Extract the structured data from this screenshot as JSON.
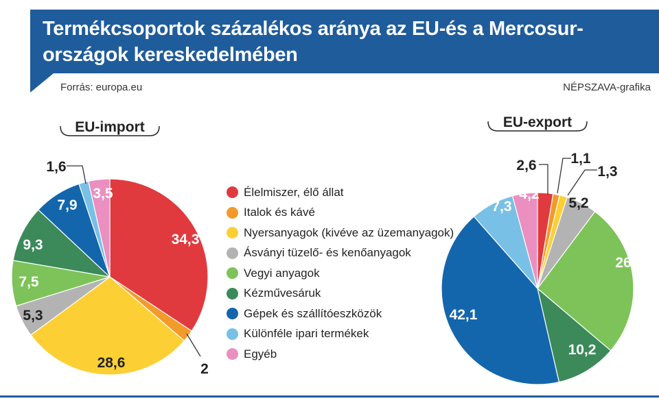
{
  "header": {
    "title_line1": "Termékcsoportok százalékos aránya az EU-és a Mercosur-",
    "title_line2": "országok kereskedelmében",
    "source": "Forrás: europa.eu",
    "credit": "NÉPSZAVA-grafika"
  },
  "colors": {
    "header_bg": "#1f5c9c",
    "categories": [
      "#e03a3e",
      "#f39a2a",
      "#fcd034",
      "#b3b3b3",
      "#7dc35a",
      "#3c8a5a",
      "#1466ac",
      "#79c0e6",
      "#ea8fc0"
    ]
  },
  "legend": [
    "Élelmiszer, élő állat",
    "Italok és kávé",
    "Nyersanyagok (kivéve az üzemanyagok)",
    "Ásványi tüzelő- és kenőanyagok",
    "Vegyi anyagok",
    "Kézművesáruk",
    "Gépek és szállítóeszközök",
    "Különféle ipari termékek",
    "Egyéb"
  ],
  "chart_data": [
    {
      "type": "pie",
      "title": "EU-import",
      "categories": [
        "Élelmiszer, élő állat",
        "Italok és kávé",
        "Nyersanyagok (kivéve az üzemanyagok)",
        "Ásványi tüzelő- és kenőanyagok",
        "Vegyi anyagok",
        "Kézművesáruk",
        "Gépek és szállítóeszközök",
        "Különféle ipari termékek",
        "Egyéb"
      ],
      "values": [
        34.3,
        2,
        28.6,
        5.3,
        7.5,
        9.3,
        7.9,
        1.6,
        3.5
      ],
      "labels": [
        "34,3",
        "2",
        "28,6",
        "5,3",
        "7,5",
        "9,3",
        "7,9",
        "1,6",
        "3,5"
      ]
    },
    {
      "type": "pie",
      "title": "EU-export",
      "categories": [
        "Élelmiszer, élő állat",
        "Italok és kávé",
        "Nyersanyagok (kivéve az üzemanyagok)",
        "Ásványi tüzelő- és kenőanyagok",
        "Vegyi anyagok",
        "Kézművesáruk",
        "Gépek és szállítóeszközök",
        "Különféle ipari termékek",
        "Egyéb"
      ],
      "values": [
        2.6,
        1.1,
        1.3,
        5.2,
        26,
        10.2,
        42.1,
        7.3,
        4.2
      ],
      "labels": [
        "2,6",
        "1,1",
        "1,3",
        "5,2",
        "26",
        "10,2",
        "42,1",
        "7,3",
        "4,2"
      ]
    }
  ]
}
